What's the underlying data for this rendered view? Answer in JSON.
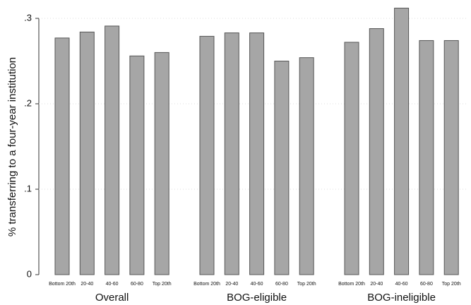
{
  "chart_data": {
    "type": "bar",
    "ylabel": "% transferring to a four-year institution",
    "categories": [
      "Bottom 20th",
      "20-40",
      "40-60",
      "60-80",
      "Top 20th"
    ],
    "groups": [
      {
        "name": "Overall",
        "values": [
          0.277,
          0.284,
          0.291,
          0.256,
          0.26
        ]
      },
      {
        "name": "BOG-eligible",
        "values": [
          0.279,
          0.283,
          0.283,
          0.25,
          0.254
        ]
      },
      {
        "name": "BOG-ineligible",
        "values": [
          0.272,
          0.288,
          0.312,
          0.274,
          0.274
        ]
      }
    ],
    "color": "#a6a6a6",
    "ylim": [
      0,
      0.3
    ],
    "yticks": [
      0,
      {
        "value": 0.1,
        "label": ".1"
      },
      {
        "value": 0.2,
        "label": ".2"
      },
      {
        "value": 0.3,
        "label": ".3"
      }
    ],
    "grid": true
  }
}
